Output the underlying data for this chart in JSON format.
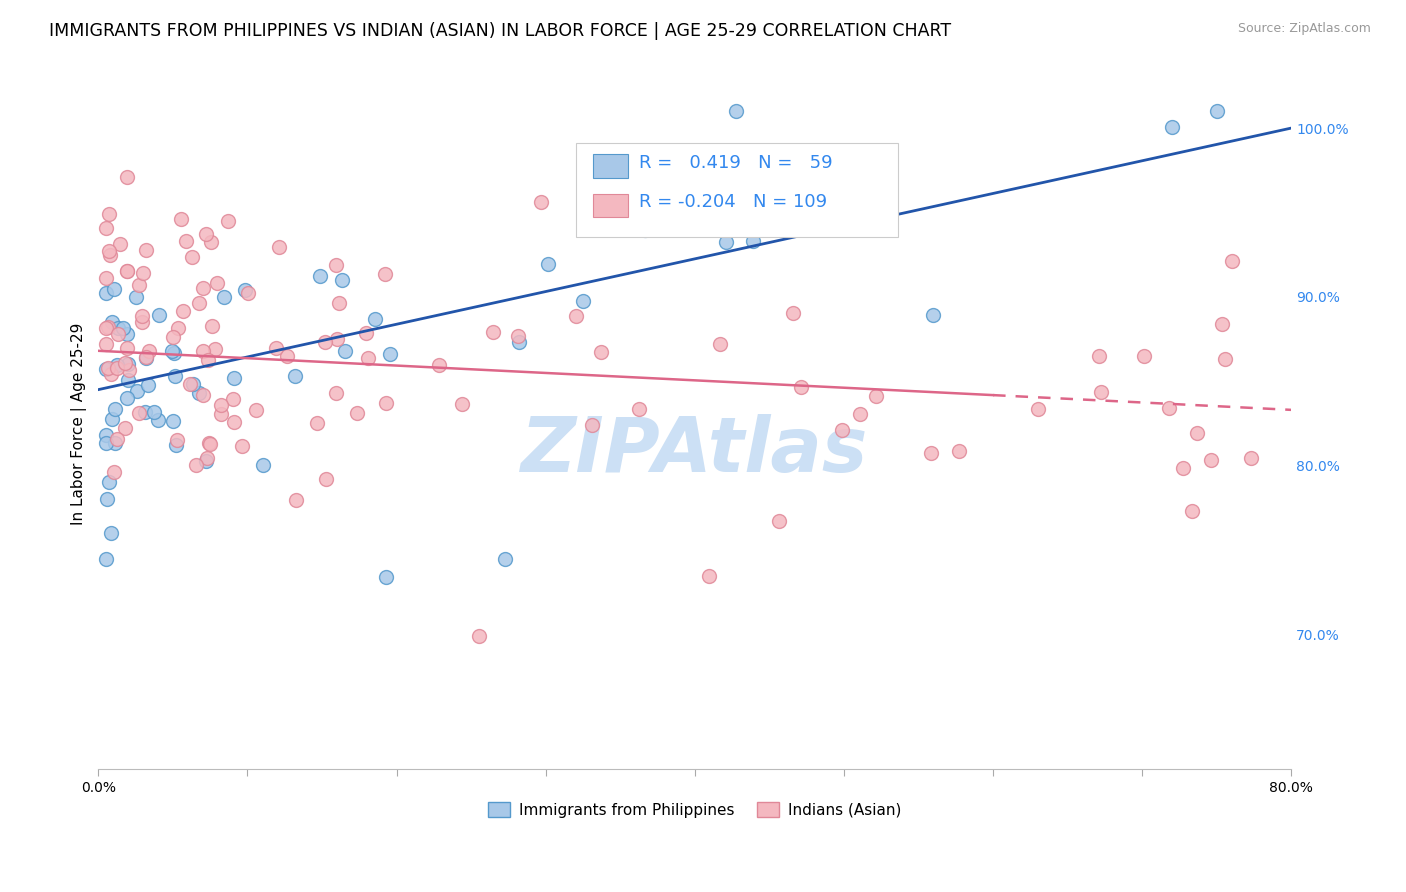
{
  "title": "IMMIGRANTS FROM PHILIPPINES VS INDIAN (ASIAN) IN LABOR FORCE | AGE 25-29 CORRELATION CHART",
  "source": "Source: ZipAtlas.com",
  "ylabel": "In Labor Force | Age 25-29",
  "xlim": [
    0.0,
    0.8
  ],
  "ylim": [
    0.62,
    1.03
  ],
  "ytick_positions": [
    0.7,
    0.8,
    0.9,
    1.0
  ],
  "yticklabels": [
    "70.0%",
    "80.0%",
    "90.0%",
    "100.0%"
  ],
  "blue_R": "0.419",
  "blue_N": "59",
  "pink_R": "-0.204",
  "pink_N": "109",
  "blue_fill_color": "#a8c8e8",
  "blue_edge_color": "#5599cc",
  "pink_fill_color": "#f4b8c0",
  "pink_edge_color": "#e08898",
  "blue_line_color": "#2255aa",
  "pink_line_color": "#dd6688",
  "tick_color_right": "#3388ee",
  "grid_color": "#dddddd",
  "background_color": "#ffffff",
  "title_fontsize": 12.5,
  "source_fontsize": 9,
  "axis_label_fontsize": 11,
  "tick_fontsize": 10,
  "legend_fontsize": 11,
  "stats_fontsize": 13,
  "marker_size": 100,
  "marker_edge_width": 1.0,
  "watermark": "ZIPAtlas",
  "watermark_color": "#cce0f5",
  "watermark_fontsize": 55
}
